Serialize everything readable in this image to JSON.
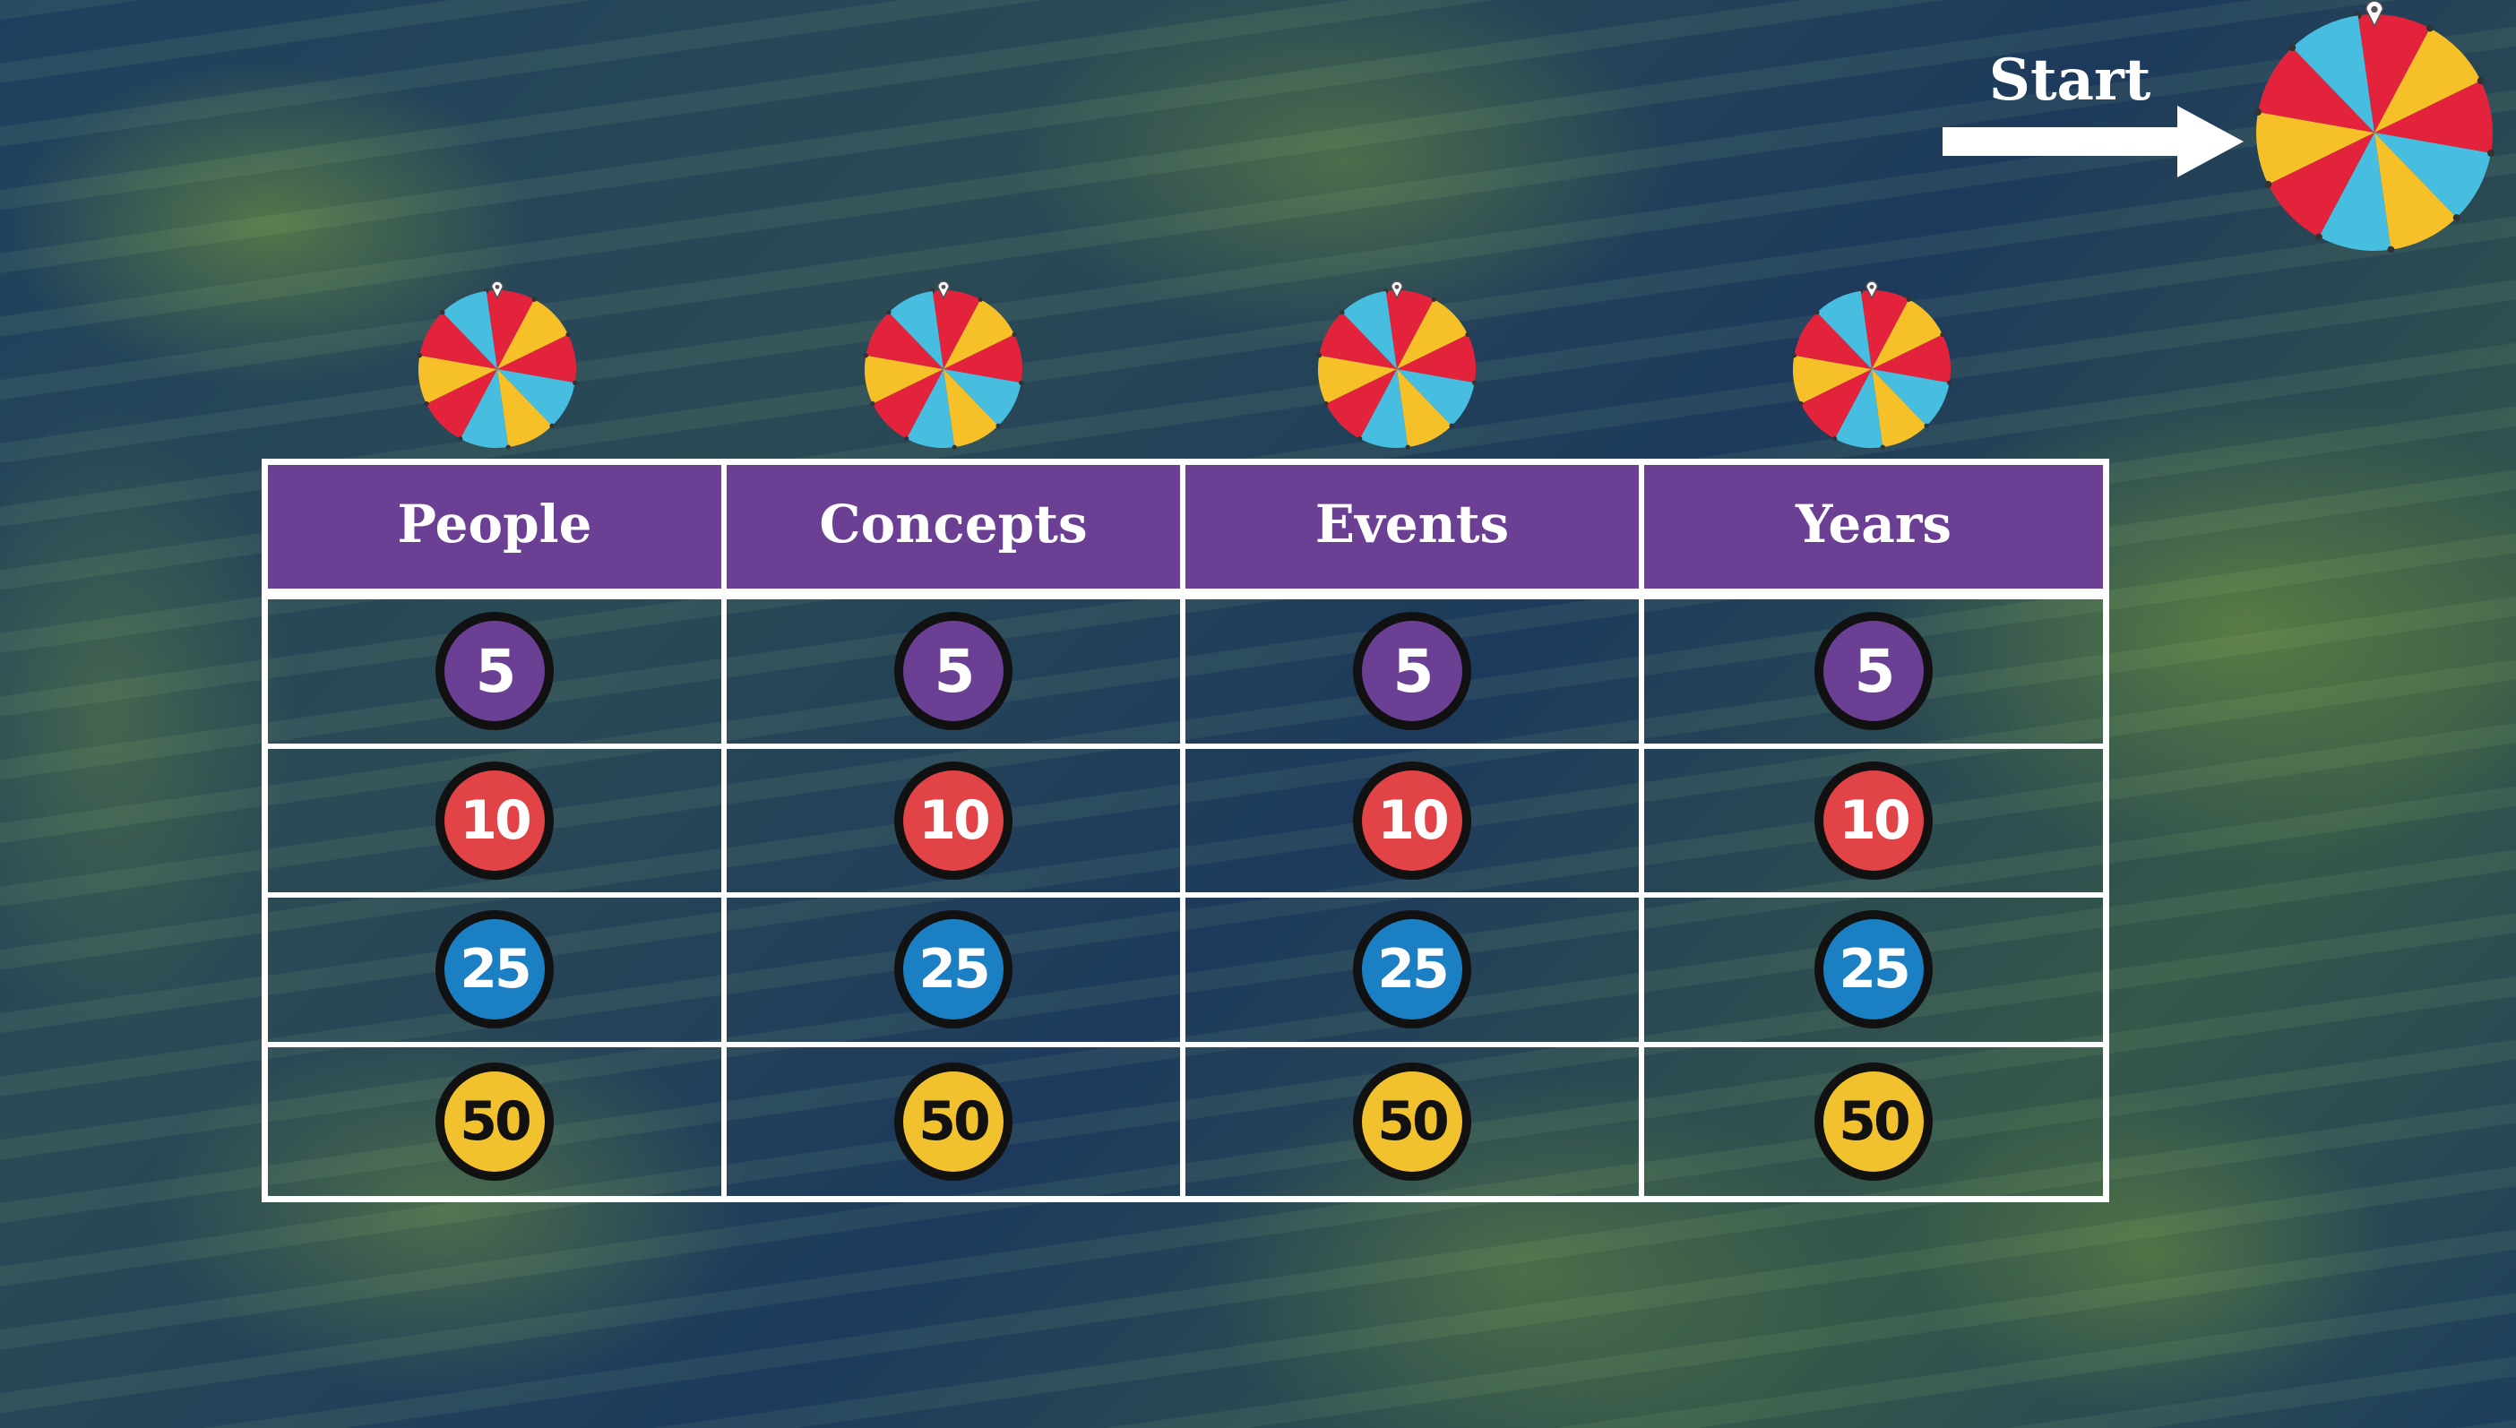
{
  "start": {
    "label": "Start"
  },
  "board": {
    "categories": [
      "People",
      "Concepts",
      "Events",
      "Years"
    ],
    "point_values": [
      "5",
      "10",
      "25",
      "50"
    ]
  },
  "colors": {
    "header_purple": "#6b3f93",
    "token_5": "#6b3f93",
    "token_10": "#e24346",
    "token_25": "#1b7fc4",
    "token_50": "#f2c12e",
    "wheel_red": "#e2233b",
    "wheel_yellow": "#f6c028",
    "wheel_blue": "#47bde0"
  },
  "icons": {
    "spinner": "spinner-wheel-icon",
    "arrow": "arrow-right-icon"
  }
}
